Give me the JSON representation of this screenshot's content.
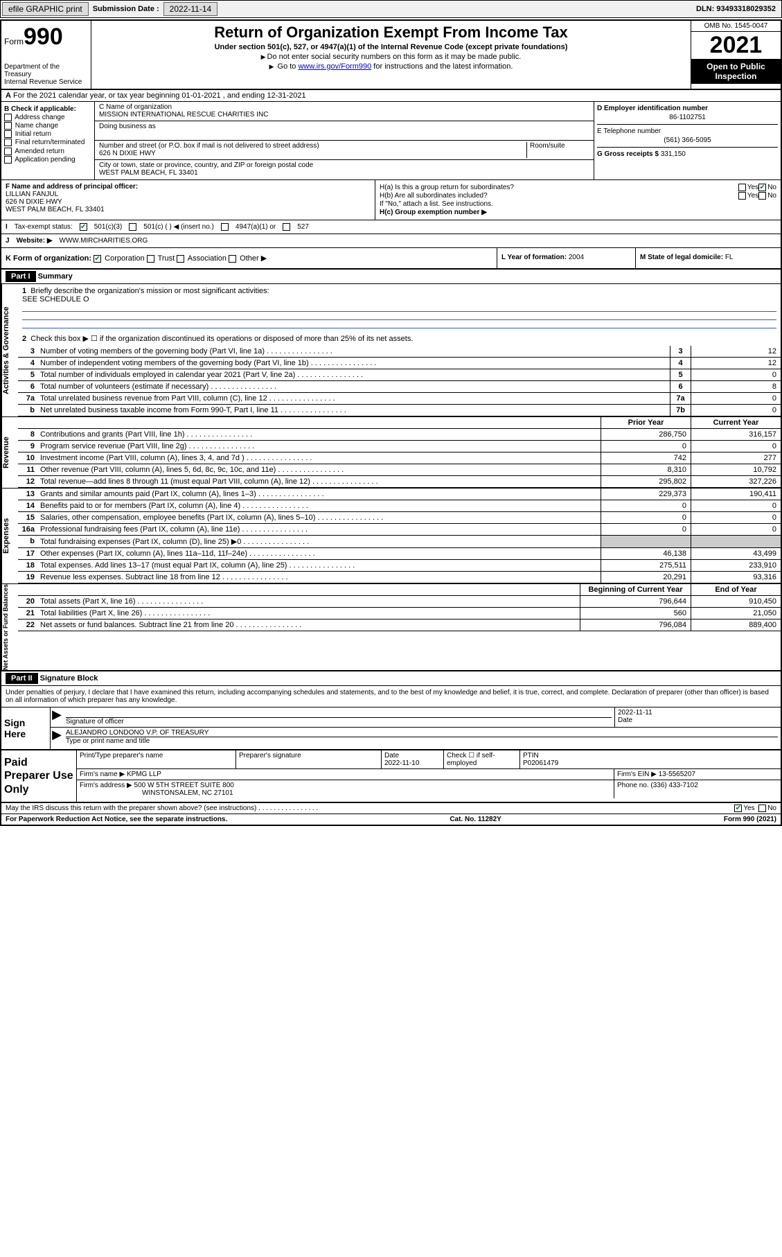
{
  "topbar": {
    "efile": "efile GRAPHIC print",
    "submission_label": "Submission Date :",
    "submission_date": "2022-11-14",
    "dln_label": "DLN:",
    "dln": "93493318029352"
  },
  "header": {
    "form_label": "Form",
    "form_number": "990",
    "dept": "Department of the Treasury\nInternal Revenue Service",
    "title": "Return of Organization Exempt From Income Tax",
    "sub1": "Under section 501(c), 527, or 4947(a)(1) of the Internal Revenue Code (except private foundations)",
    "sub2": "Do not enter social security numbers on this form as it may be made public.",
    "sub3_pre": "Go to ",
    "sub3_link": "www.irs.gov/Form990",
    "sub3_post": " for instructions and the latest information.",
    "omb": "OMB No. 1545-0047",
    "year": "2021",
    "inspect": "Open to Public Inspection"
  },
  "row_a": "For the 2021 calendar year, or tax year beginning 01-01-2021   , and ending 12-31-2021",
  "col_b": {
    "header": "B Check if applicable:",
    "items": [
      "Address change",
      "Name change",
      "Initial return",
      "Final return/terminated",
      "Amended return",
      "Application pending"
    ]
  },
  "col_c": {
    "name_label": "C Name of organization",
    "name": "MISSION INTERNATIONAL RESCUE CHARITIES INC",
    "dba_label": "Doing business as",
    "dba": "",
    "street_label": "Number and street (or P.O. box if mail is not delivered to street address)",
    "room_label": "Room/suite",
    "street": "626 N DIXIE HWY",
    "city_label": "City or town, state or province, country, and ZIP or foreign postal code",
    "city": "WEST PALM BEACH, FL  33401"
  },
  "col_d": {
    "ein_label": "D Employer identification number",
    "ein": "86-1102751",
    "phone_label": "E Telephone number",
    "phone": "(561) 366-5095",
    "gross_label": "G Gross receipts $",
    "gross": "331,150"
  },
  "row_f": {
    "label": "F Name and address of principal officer:",
    "name": "LILLIAN FANJUL",
    "addr1": "626 N DIXIE HWY",
    "addr2": "WEST PALM BEACH, FL  33401"
  },
  "row_h": {
    "ha": "H(a)  Is this a group return for subordinates?",
    "hb": "H(b)  Are all subordinates included?",
    "hb_note": "If \"No,\" attach a list. See instructions.",
    "hc": "H(c)  Group exemption number ▶",
    "yes": "Yes",
    "no": "No"
  },
  "row_i": {
    "label": "Tax-exempt status:",
    "opt1": "501(c)(3)",
    "opt2": "501(c) (  ) ◀ (insert no.)",
    "opt3": "4947(a)(1) or",
    "opt4": "527"
  },
  "row_j": {
    "label": "Website: ▶",
    "val": "WWW.MIRCHARITIES.ORG"
  },
  "row_k": {
    "label": "K Form of organization:",
    "opts": [
      "Corporation",
      "Trust",
      "Association",
      "Other ▶"
    ]
  },
  "row_l": {
    "label": "L Year of formation:",
    "val": "2004"
  },
  "row_m": {
    "label": "M State of legal domicile:",
    "val": "FL"
  },
  "part1": {
    "hdr": "Part I",
    "title": "Summary",
    "q1": "Briefly describe the organization's mission or most significant activities:",
    "q1_ans": "SEE SCHEDULE O",
    "q2": "Check this box ▶ ☐  if the organization discontinued its operations or disposed of more than 25% of its net assets.",
    "tabs": {
      "gov": "Activities & Governance",
      "rev": "Revenue",
      "exp": "Expenses",
      "net": "Net Assets or Fund Balances"
    },
    "col_prior": "Prior Year",
    "col_curr": "Current Year",
    "col_boy": "Beginning of Current Year",
    "col_eoy": "End of Year",
    "lines_gov": [
      {
        "n": "3",
        "lbl": "Number of voting members of the governing body (Part VI, line 1a)",
        "key": "3",
        "val": "12"
      },
      {
        "n": "4",
        "lbl": "Number of independent voting members of the governing body (Part VI, line 1b)",
        "key": "4",
        "val": "12"
      },
      {
        "n": "5",
        "lbl": "Total number of individuals employed in calendar year 2021 (Part V, line 2a)",
        "key": "5",
        "val": "0"
      },
      {
        "n": "6",
        "lbl": "Total number of volunteers (estimate if necessary)",
        "key": "6",
        "val": "8"
      },
      {
        "n": "7a",
        "lbl": "Total unrelated business revenue from Part VIII, column (C), line 12",
        "key": "7a",
        "val": "0"
      },
      {
        "n": "b",
        "lbl": "Net unrelated business taxable income from Form 990-T, Part I, line 11",
        "key": "7b",
        "val": "0"
      }
    ],
    "lines_rev": [
      {
        "n": "8",
        "lbl": "Contributions and grants (Part VIII, line 1h)",
        "p": "286,750",
        "c": "316,157"
      },
      {
        "n": "9",
        "lbl": "Program service revenue (Part VIII, line 2g)",
        "p": "0",
        "c": "0"
      },
      {
        "n": "10",
        "lbl": "Investment income (Part VIII, column (A), lines 3, 4, and 7d )",
        "p": "742",
        "c": "277"
      },
      {
        "n": "11",
        "lbl": "Other revenue (Part VIII, column (A), lines 5, 6d, 8c, 9c, 10c, and 11e)",
        "p": "8,310",
        "c": "10,792"
      },
      {
        "n": "12",
        "lbl": "Total revenue—add lines 8 through 11 (must equal Part VIII, column (A), line 12)",
        "p": "295,802",
        "c": "327,226"
      }
    ],
    "lines_exp": [
      {
        "n": "13",
        "lbl": "Grants and similar amounts paid (Part IX, column (A), lines 1–3)",
        "p": "229,373",
        "c": "190,411"
      },
      {
        "n": "14",
        "lbl": "Benefits paid to or for members (Part IX, column (A), line 4)",
        "p": "0",
        "c": "0"
      },
      {
        "n": "15",
        "lbl": "Salaries, other compensation, employee benefits (Part IX, column (A), lines 5–10)",
        "p": "0",
        "c": "0"
      },
      {
        "n": "16a",
        "lbl": "Professional fundraising fees (Part IX, column (A), line 11e)",
        "p": "0",
        "c": "0"
      },
      {
        "n": "b",
        "lbl": "Total fundraising expenses (Part IX, column (D), line 25) ▶0",
        "p": "",
        "c": "",
        "shade": true
      },
      {
        "n": "17",
        "lbl": "Other expenses (Part IX, column (A), lines 11a–11d, 11f–24e)",
        "p": "46,138",
        "c": "43,499"
      },
      {
        "n": "18",
        "lbl": "Total expenses. Add lines 13–17 (must equal Part IX, column (A), line 25)",
        "p": "275,511",
        "c": "233,910"
      },
      {
        "n": "19",
        "lbl": "Revenue less expenses. Subtract line 18 from line 12",
        "p": "20,291",
        "c": "93,316"
      }
    ],
    "lines_net": [
      {
        "n": "20",
        "lbl": "Total assets (Part X, line 16)",
        "p": "796,644",
        "c": "910,450"
      },
      {
        "n": "21",
        "lbl": "Total liabilities (Part X, line 26)",
        "p": "560",
        "c": "21,050"
      },
      {
        "n": "22",
        "lbl": "Net assets or fund balances. Subtract line 21 from line 20",
        "p": "796,084",
        "c": "889,400"
      }
    ]
  },
  "part2": {
    "hdr": "Part II",
    "title": "Signature Block",
    "intro": "Under penalties of perjury, I declare that I have examined this return, including accompanying schedules and statements, and to the best of my knowledge and belief, it is true, correct, and complete. Declaration of preparer (other than officer) is based on all information of which preparer has any knowledge."
  },
  "sign": {
    "here": "Sign Here",
    "sig_label": "Signature of officer",
    "date_label": "Date",
    "date": "2022-11-11",
    "name": "ALEJANDRO LONDONO V.P. OF TREASURY",
    "name_label": "Type or print name and title"
  },
  "paid": {
    "title": "Paid Preparer Use Only",
    "h1": "Print/Type preparer's name",
    "h2": "Preparer's signature",
    "h3": "Date",
    "date": "2022-11-10",
    "h4": "Check ☐ if self-employed",
    "h5": "PTIN",
    "ptin": "P02061479",
    "firm_name_lbl": "Firm's name    ▶",
    "firm_name": "KPMG LLP",
    "firm_ein_lbl": "Firm's EIN ▶",
    "firm_ein": "13-5565207",
    "firm_addr_lbl": "Firm's address ▶",
    "firm_addr1": "500 W 5TH STREET SUITE 800",
    "firm_addr2": "WINSTONSALEM, NC  27101",
    "phone_lbl": "Phone no.",
    "phone": "(336) 433-7102"
  },
  "footer": {
    "discuss": "May the IRS discuss this return with the preparer shown above? (see instructions)",
    "yes": "Yes",
    "no": "No",
    "paperwork": "For Paperwork Reduction Act Notice, see the separate instructions.",
    "cat": "Cat. No. 11282Y",
    "form": "Form 990 (2021)"
  }
}
